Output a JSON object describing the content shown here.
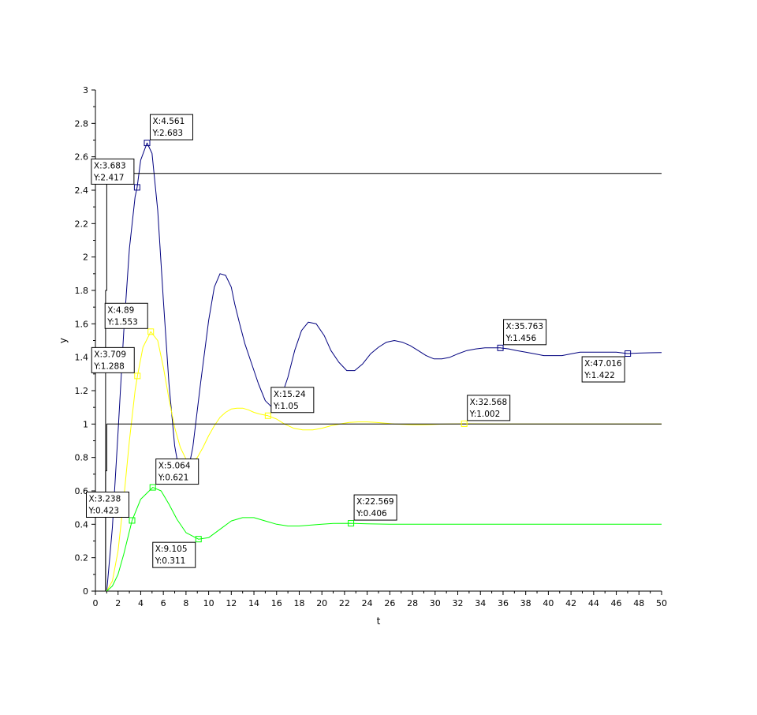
{
  "chart_data": {
    "type": "line",
    "title": "",
    "xlabel": "t",
    "ylabel": "y",
    "xlim": [
      0,
      50
    ],
    "ylim": [
      0,
      3
    ],
    "x_ticks": [
      0,
      2,
      4,
      6,
      8,
      10,
      12,
      14,
      16,
      18,
      20,
      22,
      24,
      26,
      28,
      30,
      32,
      34,
      36,
      38,
      40,
      42,
      44,
      46,
      48,
      50
    ],
    "y_ticks": [
      0,
      0.2,
      0.4,
      0.6,
      0.8,
      1,
      1.2,
      1.4,
      1.6,
      1.8,
      2,
      2.2,
      2.4,
      2.6,
      2.8,
      3
    ],
    "grid": false,
    "legend": "none",
    "series": [
      {
        "color": "#00007f",
        "description": "blue underdamped response",
        "x": [
          1,
          1.5,
          2,
          2.5,
          3,
          3.5,
          3.683,
          4,
          4.561,
          5,
          5.5,
          6,
          6.5,
          7,
          7.5,
          8,
          8.6,
          9.3,
          10,
          10.5,
          11,
          11.5,
          12,
          12.3,
          12.7,
          13.2,
          13.8,
          14.4,
          15,
          15.6,
          16.3,
          17,
          17.6,
          18.2,
          18.8,
          19.5,
          20.2,
          20.8,
          21.5,
          22.2,
          22.9,
          23.6,
          24.3,
          25,
          25.7,
          26.4,
          27.1,
          27.8,
          28.5,
          29.2,
          29.9,
          30.6,
          31.3,
          32,
          32.8,
          33.6,
          34.4,
          35.1,
          35.763,
          36.5,
          37.2,
          38,
          38.8,
          39.6,
          40.4,
          41.2,
          42,
          42.8,
          43.6,
          44.4,
          45.2,
          46,
          47.016,
          48,
          49,
          50
        ],
        "y": [
          0,
          0.38,
          0.95,
          1.55,
          2.05,
          2.36,
          2.417,
          2.58,
          2.683,
          2.62,
          2.28,
          1.74,
          1.24,
          0.87,
          0.68,
          0.66,
          0.86,
          1.25,
          1.62,
          1.82,
          1.9,
          1.89,
          1.82,
          1.72,
          1.61,
          1.48,
          1.36,
          1.24,
          1.14,
          1.1,
          1.14,
          1.28,
          1.44,
          1.56,
          1.61,
          1.6,
          1.53,
          1.44,
          1.37,
          1.32,
          1.32,
          1.36,
          1.42,
          1.46,
          1.49,
          1.5,
          1.49,
          1.47,
          1.44,
          1.41,
          1.39,
          1.39,
          1.4,
          1.42,
          1.44,
          1.45,
          1.456,
          1.456,
          1.456,
          1.45,
          1.44,
          1.43,
          1.42,
          1.41,
          1.41,
          1.41,
          1.42,
          1.43,
          1.43,
          1.43,
          1.43,
          1.43,
          1.422,
          1.425,
          1.427,
          1.428
        ]
      },
      {
        "color": "#ffff00",
        "description": "yellow response",
        "x": [
          1,
          1.5,
          2,
          2.5,
          3,
          3.5,
          3.709,
          4.2,
          4.89,
          5.5,
          6,
          6.5,
          7,
          7.5,
          8,
          8.5,
          9,
          9.5,
          10,
          10.5,
          11,
          11.5,
          12,
          12.5,
          13,
          13.5,
          14,
          14.5,
          15.24,
          16,
          16.7,
          17.5,
          18.3,
          19.2,
          20,
          20.8,
          21.6,
          22.4,
          23.2,
          24,
          24.8,
          25.6,
          26.4,
          27.2,
          28,
          28.8,
          29.6,
          30.4,
          31.2,
          32,
          32.568,
          34,
          36,
          38,
          40,
          42,
          44,
          46,
          48,
          50
        ],
        "y": [
          0,
          0.06,
          0.24,
          0.55,
          0.9,
          1.2,
          1.288,
          1.46,
          1.553,
          1.5,
          1.34,
          1.15,
          0.98,
          0.86,
          0.79,
          0.77,
          0.8,
          0.86,
          0.93,
          0.99,
          1.04,
          1.07,
          1.09,
          1.095,
          1.095,
          1.085,
          1.07,
          1.06,
          1.05,
          1.03,
          1.0,
          0.975,
          0.965,
          0.965,
          0.975,
          0.99,
          1.0,
          1.01,
          1.013,
          1.013,
          1.01,
          1.005,
          1.0,
          0.998,
          0.996,
          0.996,
          0.997,
          0.999,
          1.0,
          1.001,
          1.002,
          1.001,
          1.0,
          1.0,
          1.0,
          1.0,
          1.0,
          1.0,
          1.0,
          1.0
        ]
      },
      {
        "color": "#00ff00",
        "description": "green response",
        "x": [
          1,
          1.5,
          2,
          2.5,
          3.238,
          4,
          5.064,
          5.8,
          6.5,
          7.2,
          8,
          9.105,
          10,
          11,
          12,
          13,
          14,
          15,
          16,
          17,
          18,
          19,
          20,
          21,
          22.569,
          24,
          26,
          28,
          30,
          32,
          35,
          40,
          45,
          50
        ],
        "y": [
          0,
          0.03,
          0.1,
          0.22,
          0.423,
          0.55,
          0.621,
          0.6,
          0.52,
          0.43,
          0.35,
          0.311,
          0.32,
          0.37,
          0.42,
          0.44,
          0.44,
          0.42,
          0.4,
          0.39,
          0.39,
          0.395,
          0.4,
          0.405,
          0.406,
          0.403,
          0.4,
          0.4,
          0.4,
          0.4,
          0.4,
          0.4,
          0.4,
          0.4
        ]
      },
      {
        "color": "#000000",
        "description": "step input 1",
        "x": [
          0.9,
          0.9,
          1.0,
          1.0,
          50
        ],
        "y": [
          0,
          0.72,
          0.72,
          1.0,
          1.0
        ]
      },
      {
        "color": "#000000",
        "description": "step input 2.5",
        "x": [
          0.9,
          0.9,
          1.0,
          1.0,
          50
        ],
        "y": [
          0,
          1.8,
          1.8,
          2.5,
          2.5
        ]
      }
    ],
    "datatips": [
      {
        "x": 4.561,
        "y": 2.683,
        "color": "#00007f",
        "lines": [
          "X:4.561",
          "Y:2.683"
        ],
        "box": "above-right"
      },
      {
        "x": 3.683,
        "y": 2.417,
        "color": "#00007f",
        "lines": [
          "X:3.683",
          "Y:2.417"
        ],
        "box": "above-left"
      },
      {
        "x": 4.89,
        "y": 1.553,
        "color": "#ffff00",
        "lines": [
          "X:4.89",
          "Y:1.553"
        ],
        "box": "above-left"
      },
      {
        "x": 3.709,
        "y": 1.288,
        "color": "#ffff00",
        "lines": [
          "X:3.709",
          "Y:1.288"
        ],
        "box": "above-left"
      },
      {
        "x": 15.24,
        "y": 1.05,
        "color": "#ffff00",
        "lines": [
          "X:15.24",
          "Y:1.05"
        ],
        "box": "above-right"
      },
      {
        "x": 32.568,
        "y": 1.002,
        "color": "#ffff00",
        "lines": [
          "X:32.568",
          "Y:1.002"
        ],
        "box": "above-right"
      },
      {
        "x": 35.763,
        "y": 1.456,
        "color": "#00007f",
        "lines": [
          "X:35.763",
          "Y:1.456"
        ],
        "box": "above-right"
      },
      {
        "x": 47.016,
        "y": 1.422,
        "color": "#00007f",
        "lines": [
          "X:47.016",
          "Y:1.422"
        ],
        "box": "below-left"
      },
      {
        "x": 5.064,
        "y": 0.621,
        "color": "#00ff00",
        "lines": [
          "X:5.064",
          "Y:0.621"
        ],
        "box": "above-right"
      },
      {
        "x": 3.238,
        "y": 0.423,
        "color": "#00ff00",
        "lines": [
          "X:3.238",
          "Y:0.423"
        ],
        "box": "above-left"
      },
      {
        "x": 9.105,
        "y": 0.311,
        "color": "#00ff00",
        "lines": [
          "X:9.105",
          "Y:0.311"
        ],
        "box": "below-left"
      },
      {
        "x": 22.569,
        "y": 0.406,
        "color": "#00ff00",
        "lines": [
          "X:22.569",
          "Y:0.406"
        ],
        "box": "above-right"
      }
    ]
  }
}
